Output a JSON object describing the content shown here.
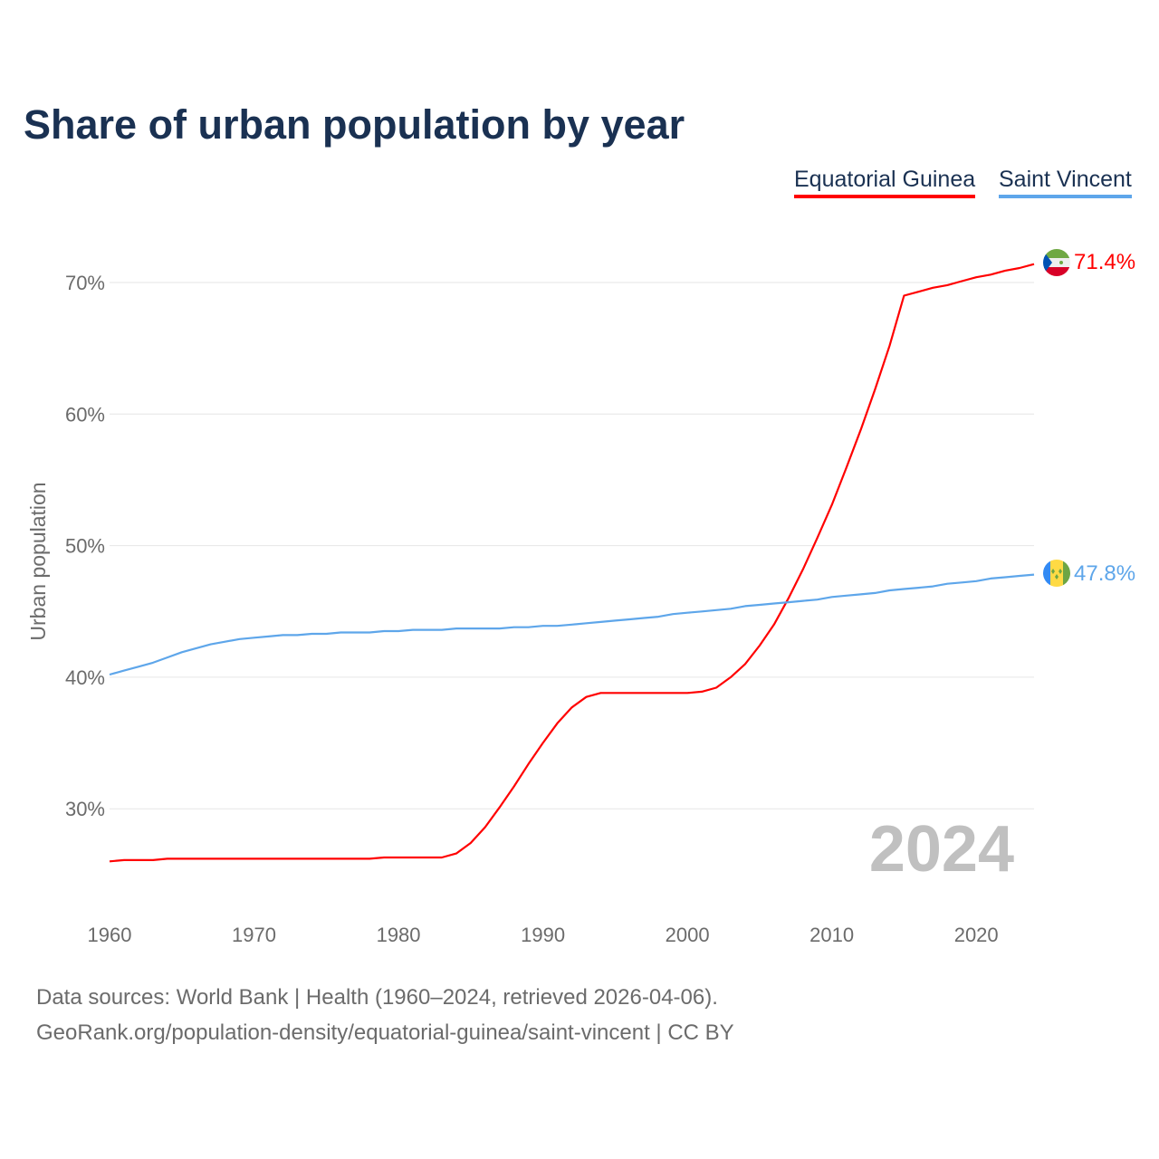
{
  "title": "Share of urban population by year",
  "legend": [
    "Equatorial Guinea",
    "Saint Vincent"
  ],
  "footer": {
    "line1": "Data sources: World Bank | Health (1960–2024, retrieved 2026-04-06).",
    "line2": "GeoRank.org/population-density/equatorial-guinea/saint-vincent | CC BY"
  },
  "chart_data": {
    "type": "line",
    "title": "Share of urban population by year",
    "xlabel": "",
    "ylabel": "Urban population",
    "xlim": [
      1960,
      2024
    ],
    "ylim": [
      23.5,
      73
    ],
    "yticks": [
      30,
      40,
      50,
      60,
      70
    ],
    "ytick_labels": [
      "30%",
      "40%",
      "50%",
      "60%",
      "70%"
    ],
    "xticks": [
      1960,
      1970,
      1980,
      1990,
      2000,
      2010,
      2020
    ],
    "xtick_labels": [
      "1960",
      "1970",
      "1980",
      "1990",
      "2000",
      "2010",
      "2020"
    ],
    "grid": true,
    "legend_position": "top-right",
    "year_watermark": "2024",
    "x_start": 1960,
    "series": [
      {
        "name": "Equatorial Guinea",
        "color": "#ff0000",
        "end_label": "71.4%",
        "values": [
          26.0,
          26.1,
          26.1,
          26.1,
          26.2,
          26.2,
          26.2,
          26.2,
          26.2,
          26.2,
          26.2,
          26.2,
          26.2,
          26.2,
          26.2,
          26.2,
          26.2,
          26.2,
          26.2,
          26.3,
          26.3,
          26.3,
          26.3,
          26.3,
          26.6,
          27.4,
          28.6,
          30.1,
          31.7,
          33.4,
          35.0,
          36.5,
          37.7,
          38.5,
          38.8,
          38.8,
          38.8,
          38.8,
          38.8,
          38.8,
          38.8,
          38.9,
          39.2,
          40.0,
          41.0,
          42.4,
          44.0,
          46.0,
          48.2,
          50.6,
          53.1,
          55.9,
          58.8,
          61.9,
          65.2,
          69.0,
          69.3,
          69.6,
          69.8,
          70.1,
          70.4,
          70.6,
          70.9,
          71.1,
          71.4
        ]
      },
      {
        "name": "Saint Vincent",
        "color": "#5ea6ea",
        "end_label": "47.8%",
        "values": [
          40.2,
          40.5,
          40.8,
          41.1,
          41.5,
          41.9,
          42.2,
          42.5,
          42.7,
          42.9,
          43.0,
          43.1,
          43.2,
          43.2,
          43.3,
          43.3,
          43.4,
          43.4,
          43.4,
          43.5,
          43.5,
          43.6,
          43.6,
          43.6,
          43.7,
          43.7,
          43.7,
          43.7,
          43.8,
          43.8,
          43.9,
          43.9,
          44.0,
          44.1,
          44.2,
          44.3,
          44.4,
          44.5,
          44.6,
          44.8,
          44.9,
          45.0,
          45.1,
          45.2,
          45.4,
          45.5,
          45.6,
          45.7,
          45.8,
          45.9,
          46.1,
          46.2,
          46.3,
          46.4,
          46.6,
          46.7,
          46.8,
          46.9,
          47.1,
          47.2,
          47.3,
          47.5,
          47.6,
          47.7,
          47.8
        ]
      }
    ]
  }
}
